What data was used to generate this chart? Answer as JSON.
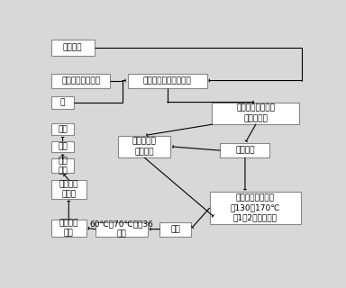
{
  "bg_color": "#d8d8d8",
  "box_fc": "#ffffff",
  "box_ec": "#888888",
  "fontsize": 6.5,
  "boxes": {
    "polyester": [
      0.03,
      0.905,
      0.16,
      0.072,
      "聚酯薄膜"
    ],
    "nano_solid": [
      0.03,
      0.76,
      0.22,
      0.065,
      "纳米级磷一氮固体"
    ],
    "water": [
      0.03,
      0.665,
      0.085,
      0.058,
      "水"
    ],
    "ship": [
      0.03,
      0.548,
      0.085,
      0.052,
      "出厂"
    ],
    "finished": [
      0.03,
      0.468,
      0.085,
      0.052,
      "成品"
    ],
    "vac_pack": [
      0.03,
      0.375,
      0.085,
      0.065,
      "真空\n包装"
    ],
    "photo_cut": [
      0.03,
      0.26,
      0.13,
      0.085,
      "光电分切\n机分切"
    ],
    "prod_check": [
      0.03,
      0.09,
      0.13,
      0.075,
      "产品性能\n检测"
    ],
    "transp_liq": [
      0.315,
      0.76,
      0.295,
      0.065,
      "透明液态磷一氮阻燃液"
    ],
    "smart_ctrl": [
      0.28,
      0.445,
      0.195,
      0.1,
      "智能一体化\n控制系统"
    ],
    "smart_spray": [
      0.63,
      0.595,
      0.325,
      0.1,
      "智能化微机控制高\n压喷枪喷涂"
    ],
    "polymerize": [
      0.66,
      0.445,
      0.185,
      0.065,
      "聚合反应"
    ],
    "high_dry": [
      0.62,
      0.145,
      0.34,
      0.145,
      "高温真空烘干工艺\n（130～170℃\n负1～2个大气压）"
    ],
    "collection": [
      0.435,
      0.09,
      0.115,
      0.065,
      "收卷"
    ],
    "temp_6070": [
      0.195,
      0.09,
      0.195,
      0.065,
      "60℃～70℃恒温36\n小时"
    ]
  }
}
